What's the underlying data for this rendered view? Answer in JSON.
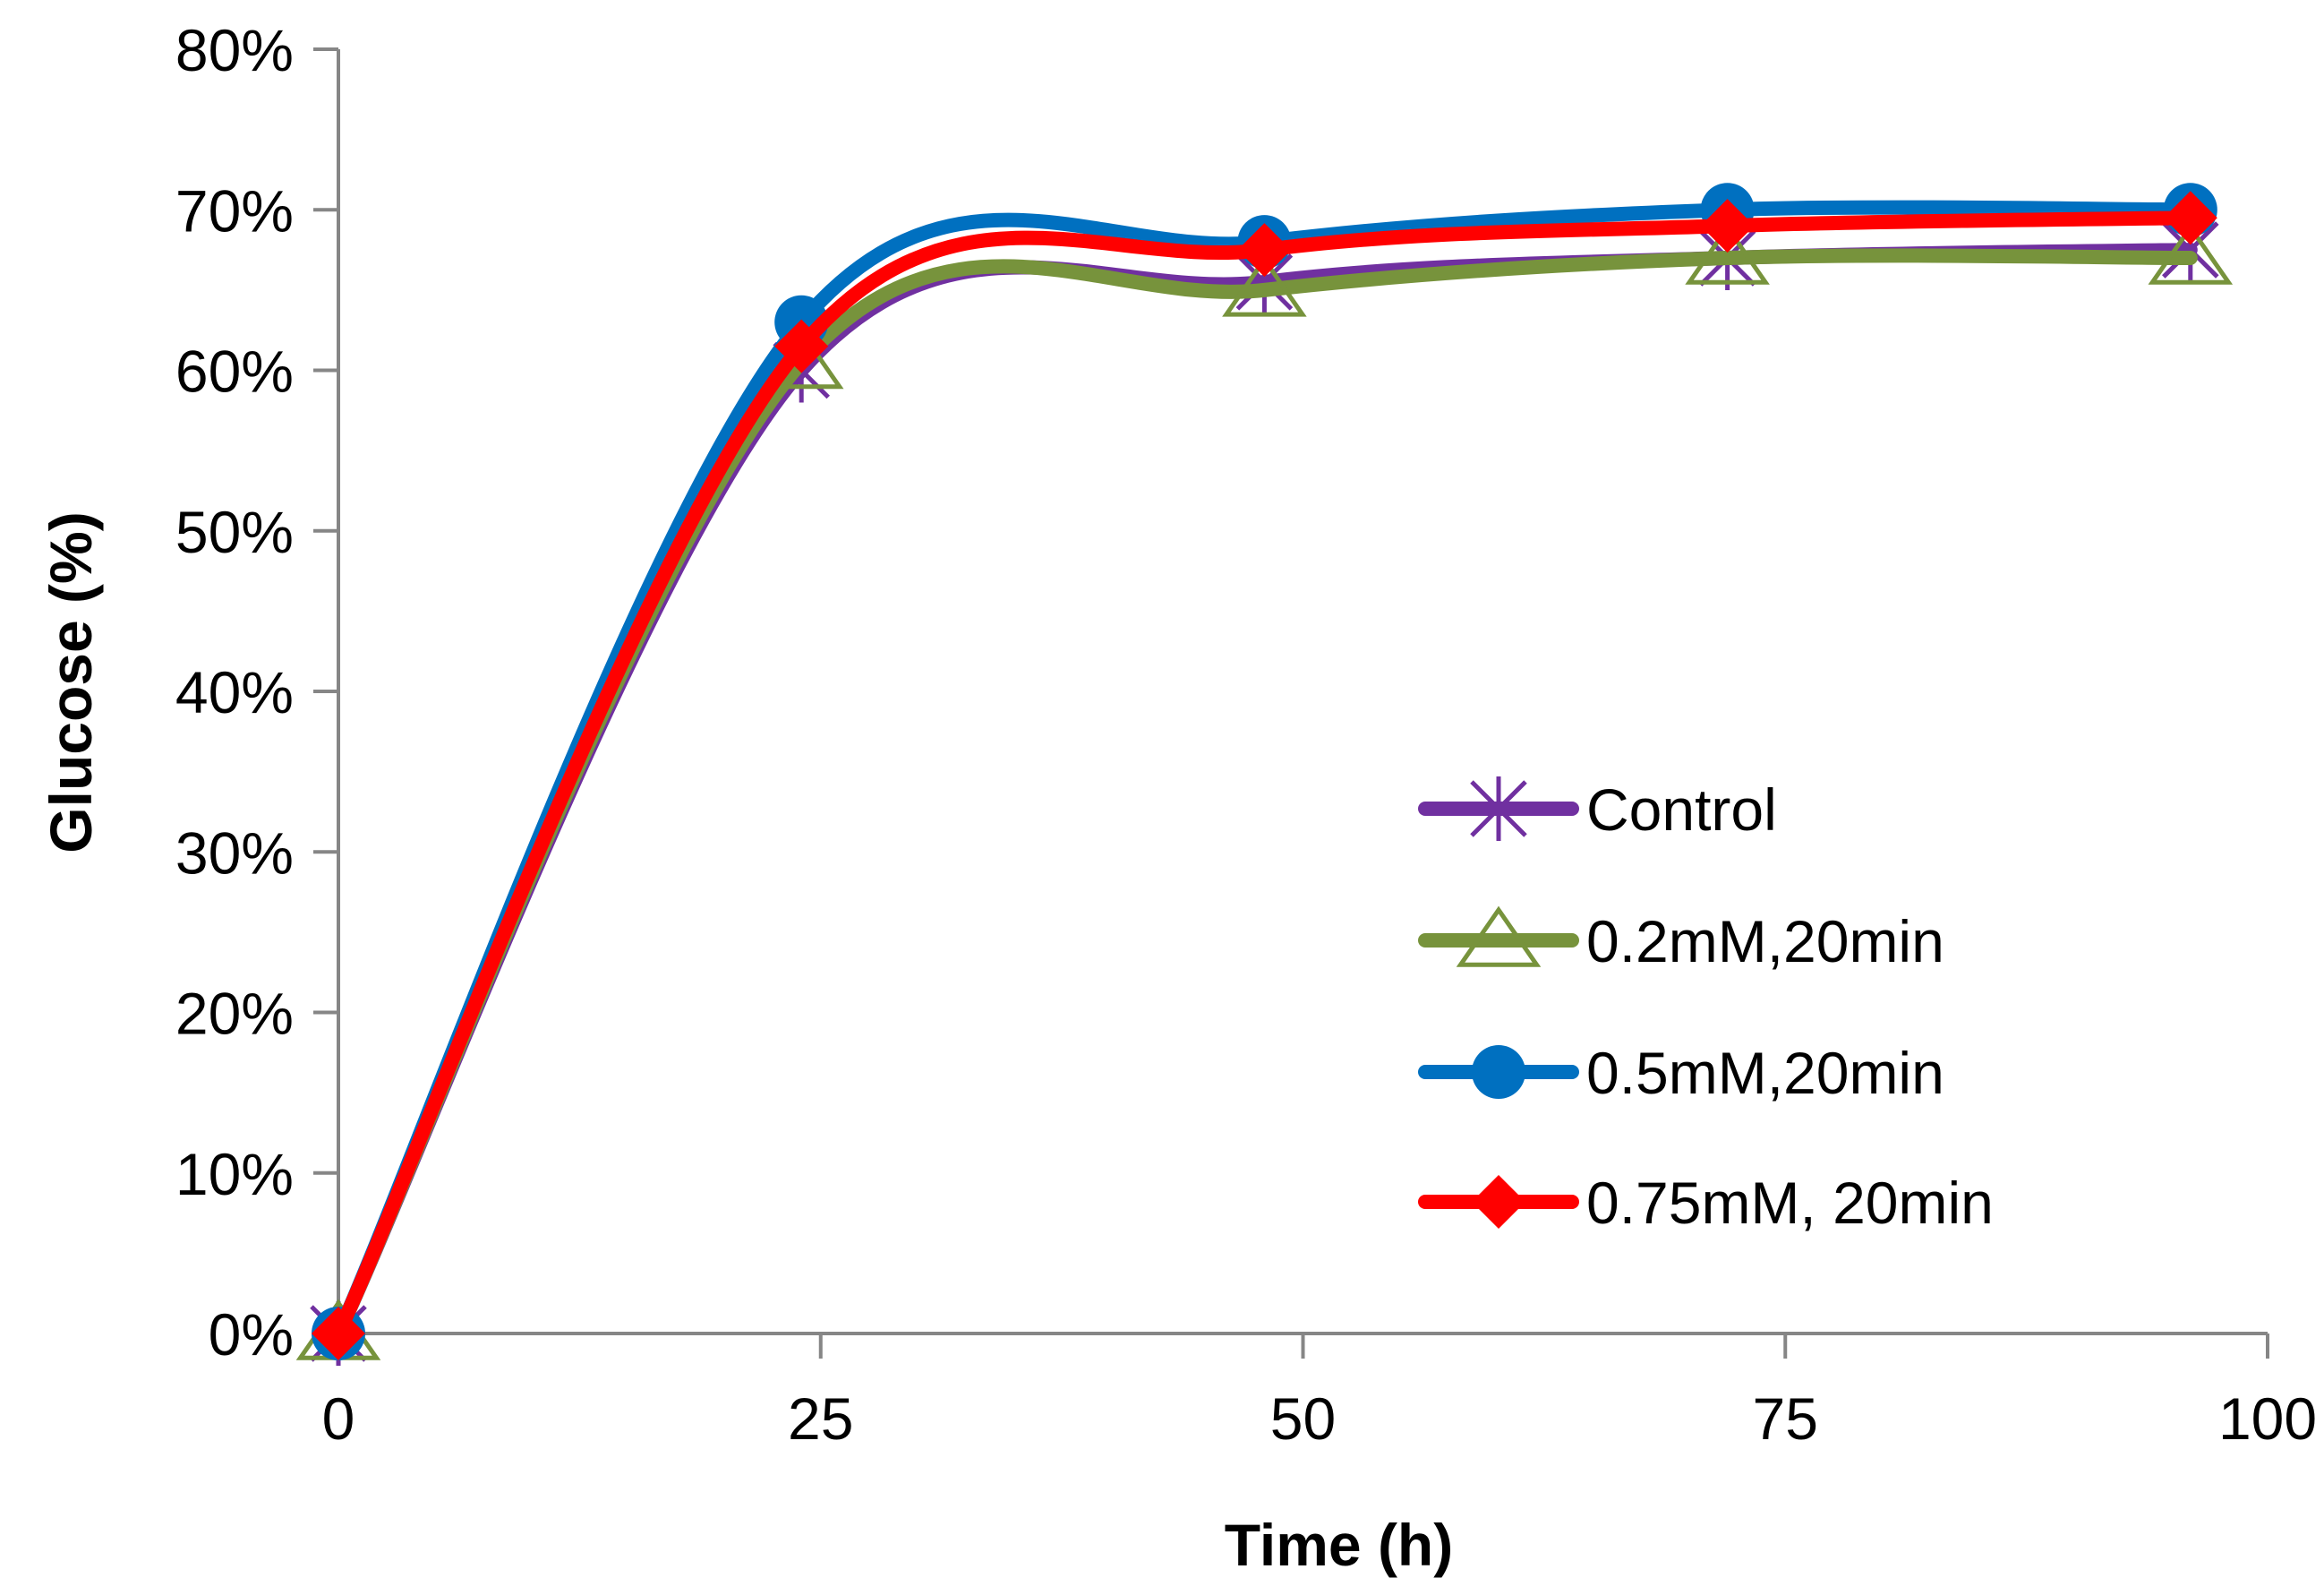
{
  "chart_data": {
    "type": "line",
    "title": "",
    "xlabel": "Time (h)",
    "ylabel": "Glucose (%)",
    "xlim": [
      0,
      100
    ],
    "ylim": [
      0,
      0.8
    ],
    "x_ticks": [
      0,
      25,
      50,
      75,
      100
    ],
    "x_tick_labels": [
      "0",
      "25",
      "50",
      "75",
      "100"
    ],
    "y_ticks": [
      0,
      0.1,
      0.2,
      0.3,
      0.4,
      0.5,
      0.6,
      0.7,
      0.8
    ],
    "y_tick_labels": [
      "0%",
      "10%",
      "20%",
      "30%",
      "40%",
      "50%",
      "60%",
      "70%",
      "80%"
    ],
    "grid": false,
    "smooth": true,
    "legend_position": "right-center",
    "x": [
      0,
      24,
      48,
      72,
      96
    ],
    "series": [
      {
        "name": "Control",
        "values": [
          0.0,
          0.6,
          0.655,
          0.67,
          0.675
        ],
        "color": "#7030A0",
        "marker": "asterisk"
      },
      {
        "name": "0.2mM,20min",
        "values": [
          0.0,
          0.605,
          0.65,
          0.67,
          0.67
        ],
        "color": "#77933C",
        "marker": "triangle-open"
      },
      {
        "name": "0.5mM,20min",
        "values": [
          0.0,
          0.63,
          0.68,
          0.7,
          0.7
        ],
        "color": "#0070C0",
        "marker": "circle"
      },
      {
        "name": "0.75mM, 20min",
        "values": [
          0.0,
          0.615,
          0.675,
          0.69,
          0.695
        ],
        "color": "#FF0000",
        "marker": "diamond"
      }
    ]
  }
}
